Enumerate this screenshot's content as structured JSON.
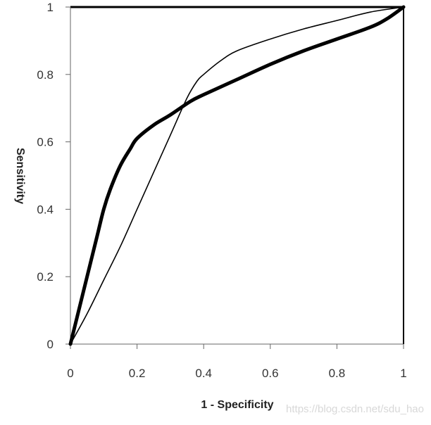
{
  "chart_data": {
    "type": "line",
    "title": "",
    "xlabel": "1 - Specificity",
    "ylabel": "Sensitivity",
    "xlim": [
      0,
      1
    ],
    "ylim": [
      0,
      1
    ],
    "x_ticks": [
      "0",
      "0.2",
      "0.4",
      "0.6",
      "0.8",
      "1"
    ],
    "y_ticks": [
      "0",
      "0.2",
      "0.4",
      "0.6",
      "0.8",
      "1"
    ],
    "grid": false,
    "legend": "none",
    "series": [
      {
        "style": "thick",
        "color": "#000000",
        "x": [
          0,
          0.02,
          0.05,
          0.08,
          0.1,
          0.12,
          0.15,
          0.18,
          0.2,
          0.25,
          0.3,
          0.36,
          0.4,
          0.5,
          0.6,
          0.7,
          0.8,
          0.9,
          0.95,
          1.0
        ],
        "y": [
          0,
          0.08,
          0.2,
          0.32,
          0.4,
          0.46,
          0.53,
          0.58,
          0.61,
          0.65,
          0.68,
          0.72,
          0.74,
          0.785,
          0.83,
          0.87,
          0.905,
          0.94,
          0.965,
          1.0
        ]
      },
      {
        "style": "thin",
        "color": "#000000",
        "x": [
          0,
          0.05,
          0.1,
          0.15,
          0.2,
          0.25,
          0.3,
          0.35,
          0.38,
          0.4,
          0.45,
          0.5,
          0.6,
          0.7,
          0.8,
          0.9,
          1.0
        ],
        "y": [
          0,
          0.09,
          0.19,
          0.29,
          0.4,
          0.51,
          0.62,
          0.73,
          0.78,
          0.8,
          0.84,
          0.87,
          0.905,
          0.935,
          0.96,
          0.985,
          1.0
        ]
      }
    ]
  },
  "watermark": "https://blog.csdn.net/sdu_hao"
}
